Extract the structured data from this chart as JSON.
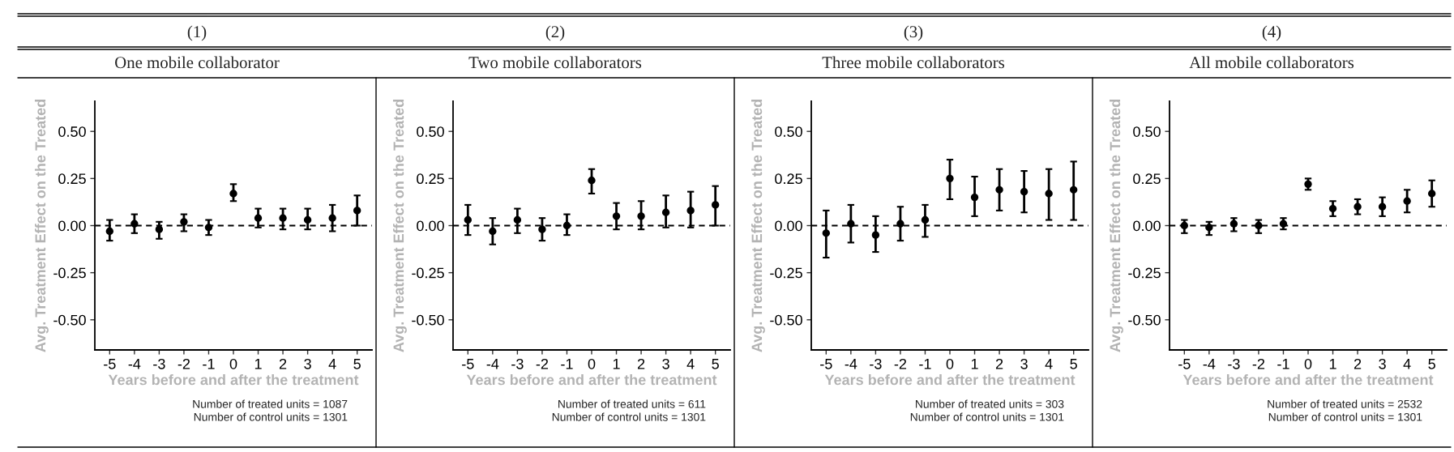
{
  "chart_data": [
    {
      "type": "scatter",
      "title": "(1)",
      "subtitle": "One mobile collaborator",
      "xlabel": "Years before and after the treatment",
      "ylabel": "Avg. Treatment Effect on the Treated",
      "x": [
        -5,
        -4,
        -3,
        -2,
        -1,
        0,
        1,
        2,
        3,
        4,
        5
      ],
      "xlim": [
        -5.6,
        5.6
      ],
      "xticks": [
        -5,
        -4,
        -3,
        -2,
        -1,
        0,
        1,
        2,
        3,
        4,
        5
      ],
      "ylim": [
        -0.66,
        0.66
      ],
      "yticks": [
        {
          "value": 0.5,
          "label": "0.50"
        },
        {
          "value": 0.25,
          "label": "0.25"
        },
        {
          "value": 0,
          "label": "0.00"
        },
        {
          "value": -0.25,
          "label": "-0.25"
        },
        {
          "value": -0.5,
          "label": "-0.50"
        }
      ],
      "marker": "circle",
      "grid": false,
      "series": [
        {
          "color": "#000000",
          "values": [
            -0.03,
            0.01,
            -0.02,
            0.02,
            -0.01,
            0.17,
            0.04,
            0.04,
            0.03,
            0.04,
            0.08
          ],
          "errors": [
            [
              -0.08,
              0.03
            ],
            [
              -0.04,
              0.06
            ],
            [
              -0.07,
              0.02
            ],
            [
              -0.03,
              0.06
            ],
            [
              -0.05,
              0.03
            ],
            [
              0.13,
              0.22
            ],
            [
              -0.01,
              0.09
            ],
            [
              -0.02,
              0.09
            ],
            [
              -0.02,
              0.09
            ],
            [
              -0.03,
              0.11
            ],
            [
              0.0,
              0.16
            ]
          ]
        }
      ],
      "ref_lines": [
        {
          "axis": "y",
          "value": 0,
          "line_style": "dashed",
          "color": "#000000"
        }
      ],
      "annotations": [
        "Number of treated units = 1087",
        "Number of control units = 1301"
      ]
    },
    {
      "type": "scatter",
      "title": "(2)",
      "subtitle": "Two mobile collaborators",
      "xlabel": "Years before and after the treatment",
      "ylabel": "Avg. Treatment Effect on the Treated",
      "x": [
        -5,
        -4,
        -3,
        -2,
        -1,
        0,
        1,
        2,
        3,
        4,
        5
      ],
      "xlim": [
        -5.6,
        5.6
      ],
      "xticks": [
        -5,
        -4,
        -3,
        -2,
        -1,
        0,
        1,
        2,
        3,
        4,
        5
      ],
      "ylim": [
        -0.66,
        0.66
      ],
      "yticks": [
        {
          "value": 0.5,
          "label": "0.50"
        },
        {
          "value": 0.25,
          "label": "0.25"
        },
        {
          "value": 0,
          "label": "0.00"
        },
        {
          "value": -0.25,
          "label": "-0.25"
        },
        {
          "value": -0.5,
          "label": "-0.50"
        }
      ],
      "marker": "circle",
      "grid": false,
      "series": [
        {
          "color": "#000000",
          "values": [
            0.03,
            -0.03,
            0.03,
            -0.02,
            0.0,
            0.24,
            0.05,
            0.05,
            0.07,
            0.08,
            0.11
          ],
          "errors": [
            [
              -0.05,
              0.11
            ],
            [
              -0.1,
              0.04
            ],
            [
              -0.04,
              0.09
            ],
            [
              -0.08,
              0.04
            ],
            [
              -0.05,
              0.06
            ],
            [
              0.17,
              0.3
            ],
            [
              -0.02,
              0.12
            ],
            [
              -0.02,
              0.13
            ],
            [
              -0.01,
              0.16
            ],
            [
              -0.01,
              0.18
            ],
            [
              0.0,
              0.21
            ]
          ]
        }
      ],
      "ref_lines": [
        {
          "axis": "y",
          "value": 0,
          "line_style": "dashed",
          "color": "#000000"
        }
      ],
      "annotations": [
        "Number of treated units = 611",
        "Number of control units = 1301"
      ]
    },
    {
      "type": "scatter",
      "title": "(3)",
      "subtitle": "Three mobile collaborators",
      "xlabel": "Years before and after the treatment",
      "ylabel": "Avg. Treatment Effect on the Treated",
      "x": [
        -5,
        -4,
        -3,
        -2,
        -1,
        0,
        1,
        2,
        3,
        4,
        5
      ],
      "xlim": [
        -5.6,
        5.6
      ],
      "xticks": [
        -5,
        -4,
        -3,
        -2,
        -1,
        0,
        1,
        2,
        3,
        4,
        5
      ],
      "ylim": [
        -0.66,
        0.66
      ],
      "yticks": [
        {
          "value": 0.5,
          "label": "0.50"
        },
        {
          "value": 0.25,
          "label": "0.25"
        },
        {
          "value": 0,
          "label": "0.00"
        },
        {
          "value": -0.25,
          "label": "-0.25"
        },
        {
          "value": -0.5,
          "label": "-0.50"
        }
      ],
      "marker": "circle",
      "grid": false,
      "series": [
        {
          "color": "#000000",
          "values": [
            -0.04,
            0.01,
            -0.05,
            0.01,
            0.03,
            0.25,
            0.15,
            0.19,
            0.18,
            0.17,
            0.19
          ],
          "errors": [
            [
              -0.17,
              0.08
            ],
            [
              -0.09,
              0.11
            ],
            [
              -0.14,
              0.05
            ],
            [
              -0.08,
              0.1
            ],
            [
              -0.06,
              0.11
            ],
            [
              0.14,
              0.35
            ],
            [
              0.05,
              0.26
            ],
            [
              0.08,
              0.3
            ],
            [
              0.07,
              0.29
            ],
            [
              0.03,
              0.3
            ],
            [
              0.03,
              0.34
            ]
          ]
        }
      ],
      "ref_lines": [
        {
          "axis": "y",
          "value": 0,
          "line_style": "dashed",
          "color": "#000000"
        }
      ],
      "annotations": [
        "Number of treated units = 303",
        "Number of control units = 1301"
      ]
    },
    {
      "type": "scatter",
      "title": "(4)",
      "subtitle": "All mobile collaborators",
      "xlabel": "Years before and after the treatment",
      "ylabel": "Avg. Treatment Effect on the Treated",
      "x": [
        -5,
        -4,
        -3,
        -2,
        -1,
        0,
        1,
        2,
        3,
        4,
        5
      ],
      "xlim": [
        -5.6,
        5.6
      ],
      "xticks": [
        -5,
        -4,
        -3,
        -2,
        -1,
        0,
        1,
        2,
        3,
        4,
        5
      ],
      "ylim": [
        -0.66,
        0.66
      ],
      "yticks": [
        {
          "value": 0.5,
          "label": "0.50"
        },
        {
          "value": 0.25,
          "label": "0.25"
        },
        {
          "value": 0,
          "label": "0.00"
        },
        {
          "value": -0.25,
          "label": "-0.25"
        },
        {
          "value": -0.5,
          "label": "-0.50"
        }
      ],
      "marker": "circle",
      "grid": false,
      "series": [
        {
          "color": "#000000",
          "values": [
            0.0,
            -0.01,
            0.01,
            0.0,
            0.01,
            0.22,
            0.09,
            0.1,
            0.1,
            0.13,
            0.17
          ],
          "errors": [
            [
              -0.04,
              0.03
            ],
            [
              -0.05,
              0.02
            ],
            [
              -0.03,
              0.04
            ],
            [
              -0.04,
              0.03
            ],
            [
              -0.02,
              0.04
            ],
            [
              0.19,
              0.25
            ],
            [
              0.05,
              0.13
            ],
            [
              0.06,
              0.14
            ],
            [
              0.05,
              0.15
            ],
            [
              0.07,
              0.19
            ],
            [
              0.1,
              0.24
            ]
          ]
        }
      ],
      "ref_lines": [
        {
          "axis": "y",
          "value": 0,
          "line_style": "dashed",
          "color": "#000000"
        }
      ],
      "annotations": [
        "Number of treated units = 2532",
        "Number of control units = 1301"
      ]
    }
  ]
}
